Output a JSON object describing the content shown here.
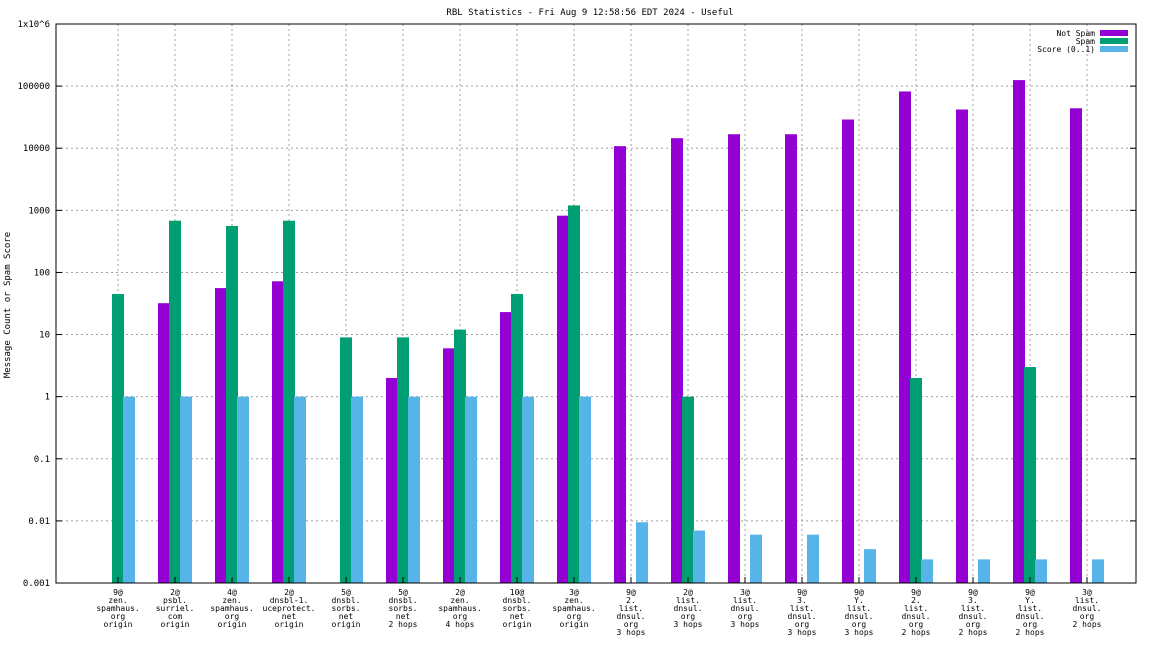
{
  "chart_data": {
    "type": "bar",
    "title": "RBL Statistics - Fri Aug  9 12:58:56 EDT 2024 - Useful",
    "xlabel": "",
    "ylabel": "Message Count or Spam Score",
    "yscale": "log",
    "ylim": [
      0.001,
      1000000
    ],
    "yticks": [
      {
        "value": 0.001,
        "label": "0.001"
      },
      {
        "value": 0.01,
        "label": "0.01"
      },
      {
        "value": 0.1,
        "label": "0.1"
      },
      {
        "value": 1,
        "label": "1"
      },
      {
        "value": 10,
        "label": "10"
      },
      {
        "value": 100,
        "label": "100"
      },
      {
        "value": 1000,
        "label": "1000"
      },
      {
        "value": 10000,
        "label": "10000"
      },
      {
        "value": 100000,
        "label": "100000"
      },
      {
        "value": 1000000,
        "label": "1x10^6"
      }
    ],
    "grid": true,
    "legend_position": "top-right",
    "categories": [
      "9@ zen. spamhaus. org origin",
      "2@ psbl. surriel. com origin",
      "4@ zen. spamhaus. org origin",
      "2@ dnsbl-1. uceprotect. net origin",
      "5@ dnsbl. sorbs. net origin",
      "5@ dnsbl. sorbs. net 2 hops",
      "2@ zen. spamhaus. org 4 hops",
      "10@ dnsbl. sorbs. net origin",
      "3@ zen. spamhaus. org origin",
      "9@ 2. list. dnsul. org 3 hops",
      "2@ list. dnsul. org 3 hops",
      "3@ list. dnsul. org 3 hops",
      "9@ 3. list. dnsul. org 3 hops",
      "9@ Y. list. dnsul. org 3 hops",
      "9@ 2. list. dnsul. org 2 hops",
      "9@ 3. list. dnsul. org 2 hops",
      "9@ Y. list. dnsul. org 2 hops",
      "3@ list. dnsul. org 2 hops"
    ],
    "category_lines": [
      [
        "9@",
        "zen.",
        "spamhaus.",
        "org",
        "origin"
      ],
      [
        "2@",
        "psbl.",
        "surriel.",
        "com",
        "origin"
      ],
      [
        "4@",
        "zen.",
        "spamhaus.",
        "org",
        "origin"
      ],
      [
        "2@",
        "dnsbl-1.",
        "uceprotect.",
        "net",
        "origin"
      ],
      [
        "5@",
        "dnsbl.",
        "sorbs.",
        "net",
        "origin"
      ],
      [
        "5@",
        "dnsbl.",
        "sorbs.",
        "net",
        "2 hops"
      ],
      [
        "2@",
        "zen.",
        "spamhaus.",
        "org",
        "4 hops"
      ],
      [
        "10@",
        "dnsbl.",
        "sorbs.",
        "net",
        "origin"
      ],
      [
        "3@",
        "zen.",
        "spamhaus.",
        "org",
        "origin"
      ],
      [
        "9@",
        "2.",
        "list.",
        "dnsul.",
        "org",
        "3 hops"
      ],
      [
        "2@",
        "list.",
        "dnsul.",
        "org",
        "3 hops"
      ],
      [
        "3@",
        "list.",
        "dnsul.",
        "org",
        "3 hops"
      ],
      [
        "9@",
        "3.",
        "list.",
        "dnsul.",
        "org",
        "3 hops"
      ],
      [
        "9@",
        "Y.",
        "list.",
        "dnsul.",
        "org",
        "3 hops"
      ],
      [
        "9@",
        "2.",
        "list.",
        "dnsul.",
        "org",
        "2 hops"
      ],
      [
        "9@",
        "3.",
        "list.",
        "dnsul.",
        "org",
        "2 hops"
      ],
      [
        "9@",
        "Y.",
        "list.",
        "dnsul.",
        "org",
        "2 hops"
      ],
      [
        "3@",
        "list.",
        "dnsul.",
        "org",
        "2 hops"
      ]
    ],
    "series": [
      {
        "name": "Not Spam",
        "color": "#9400d3",
        "values": [
          null,
          32,
          56,
          72,
          null,
          2,
          6,
          23,
          820,
          10800,
          14500,
          16800,
          16800,
          29000,
          82000,
          42000,
          125000,
          44000
        ]
      },
      {
        "name": "Spam",
        "color": "#009e73",
        "values": [
          45,
          680,
          560,
          680,
          9,
          9,
          12,
          45,
          1200,
          null,
          1,
          null,
          null,
          null,
          2,
          null,
          3,
          null
        ]
      },
      {
        "name": "Score (0..1)",
        "color": "#56b4e9",
        "values": [
          1,
          1,
          1,
          1,
          1,
          1,
          1,
          1,
          1,
          0.0095,
          0.007,
          0.006,
          0.006,
          0.0035,
          0.0024,
          0.0024,
          0.0024,
          0.0024
        ]
      }
    ]
  }
}
